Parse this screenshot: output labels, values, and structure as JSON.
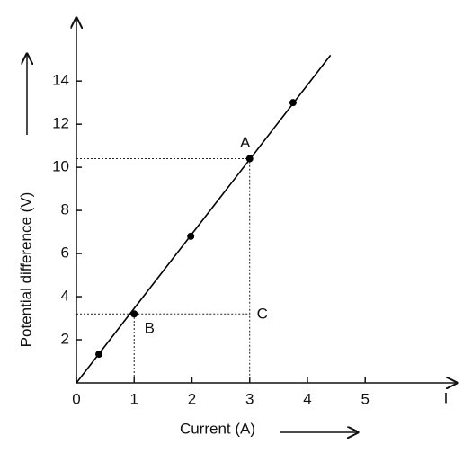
{
  "chart_data": {
    "type": "line",
    "x_label": "Current (A)",
    "y_label": "Potential difference (V)",
    "x_symbol": "I",
    "xlim": [
      0,
      6.6
    ],
    "ylim": [
      0,
      16.8
    ],
    "xticks": [
      0,
      1,
      2,
      3,
      4,
      5
    ],
    "yticks": [
      2,
      4,
      6,
      8,
      10,
      12,
      14
    ],
    "series": [
      {
        "x": [
          0,
          4.4
        ],
        "values": [
          0,
          15.2
        ],
        "color": "#000000"
      }
    ],
    "points": {
      "x": [
        0.39,
        1,
        1.98,
        3,
        3.75
      ],
      "values": [
        1.33,
        3.2,
        6.8,
        10.4,
        13.0
      ],
      "color": "#000000"
    },
    "guides": [
      {
        "label": "A",
        "x": 3,
        "y": 10.4
      },
      {
        "label": "B",
        "x": 1,
        "y": 3.2
      }
    ],
    "corner_label": "C"
  }
}
